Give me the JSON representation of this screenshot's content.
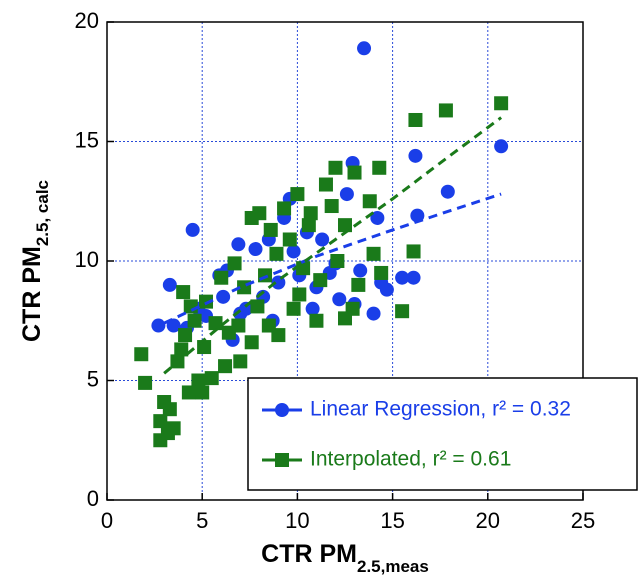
{
  "chart_data": {
    "type": "scatter",
    "x_label": "CTR PM",
    "x_label_sub": "2.5,meas",
    "y_label": "CTR PM",
    "y_label_sub": "2.5, calc",
    "xlim": [
      0,
      25
    ],
    "ylim": [
      0,
      20
    ],
    "xticks": [
      0,
      5,
      10,
      15,
      20,
      25
    ],
    "yticks": [
      0,
      5,
      10,
      15,
      20
    ],
    "grid": true,
    "legend": "lower right",
    "series": [
      {
        "name": "Linear Regression, r² = 0.32",
        "color": "#1a3ee8",
        "marker": "circle",
        "x": [
          13.5,
          4.5,
          20.7,
          16.2,
          17.9,
          16.3,
          12.9,
          14.2,
          15.5,
          16.1,
          14.0,
          14.4,
          13.3,
          12.0,
          11.3,
          10.5,
          9.6,
          9.3,
          8.5,
          7.8,
          6.9,
          5.9,
          6.3,
          3.3,
          3.5,
          2.7,
          4.2,
          5.2,
          6.1,
          7.3,
          8.2,
          9.0,
          10.1,
          11.0,
          12.2,
          13.0,
          12.6,
          10.8,
          8.7,
          6.6,
          4.8,
          9.8,
          11.7,
          14.7,
          7.0
        ],
        "values": [
          18.9,
          11.3,
          14.8,
          14.4,
          12.9,
          11.9,
          14.1,
          11.8,
          9.3,
          9.3,
          7.8,
          9.1,
          9.6,
          9.9,
          10.9,
          11.2,
          12.6,
          11.8,
          10.9,
          10.5,
          10.7,
          9.4,
          9.6,
          9.0,
          7.3,
          7.3,
          7.2,
          7.7,
          8.5,
          8.0,
          8.5,
          9.1,
          9.4,
          8.9,
          8.4,
          8.2,
          12.8,
          8.0,
          7.5,
          6.7,
          8.0,
          10.4,
          9.5,
          8.8,
          7.8
        ],
        "trend_x": [
          3,
          7,
          11,
          15,
          18,
          20.7
        ],
        "trend_y": [
          7.4,
          8.9,
          10.2,
          11.3,
          12.1,
          12.8
        ]
      },
      {
        "name": "Interpolated, r² = 0.61",
        "color": "#1a7a1a",
        "marker": "square",
        "x": [
          20.7,
          17.8,
          16.2,
          14.3,
          13.0,
          12.0,
          11.5,
          10.0,
          9.3,
          8.0,
          7.6,
          10.7,
          11.8,
          13.8,
          12.5,
          14.0,
          16.1,
          15.5,
          12.5,
          11.0,
          9.8,
          8.5,
          7.6,
          7.0,
          6.2,
          5.5,
          4.8,
          4.3,
          5.0,
          3.3,
          3.0,
          2.8,
          3.5,
          2.8,
          3.2,
          1.8,
          2.0,
          3.7,
          4.1,
          4.4,
          4.0,
          5.2,
          5.7,
          6.0,
          6.7,
          7.2,
          8.3,
          8.9,
          9.6,
          10.3,
          11.2,
          12.1,
          13.2,
          14.4,
          9.0,
          6.4,
          4.6,
          3.9,
          5.1,
          7.9,
          10.1,
          12.9,
          6.9,
          8.6,
          10.6
        ],
        "values": [
          16.6,
          16.3,
          15.9,
          13.9,
          13.7,
          13.9,
          13.2,
          12.8,
          12.2,
          12.0,
          11.8,
          12.0,
          12.3,
          12.5,
          11.5,
          10.3,
          10.4,
          7.9,
          7.6,
          7.5,
          8.0,
          7.3,
          6.6,
          5.8,
          5.6,
          5.1,
          5.0,
          4.5,
          4.5,
          3.8,
          4.1,
          3.3,
          3.0,
          2.5,
          2.8,
          6.1,
          4.9,
          5.8,
          6.9,
          8.1,
          8.7,
          8.3,
          7.4,
          9.3,
          9.9,
          8.9,
          9.4,
          10.3,
          10.9,
          9.7,
          9.2,
          10.0,
          9.0,
          9.5,
          6.9,
          7.0,
          7.5,
          6.3,
          6.4,
          8.1,
          8.6,
          8.0,
          7.3,
          11.3,
          11.5
        ],
        "trend_x": [
          3,
          6,
          9,
          12,
          15,
          18,
          20.7
        ],
        "trend_y": [
          5.3,
          7.3,
          9.2,
          10.9,
          12.6,
          14.4,
          16.0
        ]
      }
    ]
  }
}
